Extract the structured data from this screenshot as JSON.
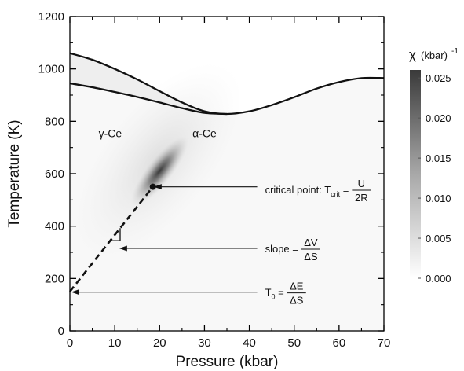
{
  "chart_data": {
    "type": "heatmap",
    "title": "",
    "xlabel": "Pressure (kbar)",
    "ylabel": "Temperature (K)",
    "xlim": [
      0,
      70
    ],
    "ylim": [
      0,
      1200
    ],
    "x_ticks": [
      0,
      10,
      20,
      30,
      40,
      50,
      60,
      70
    ],
    "y_ticks": [
      0,
      200,
      400,
      600,
      800,
      1000,
      1200
    ],
    "x_tick_labels": [
      "0",
      "10",
      "20",
      "30",
      "40",
      "50",
      "60",
      "70"
    ],
    "y_tick_labels": [
      "0",
      "200",
      "400",
      "600",
      "800",
      "1000",
      "1200"
    ],
    "grid": false,
    "colorbar": {
      "title": "χ",
      "unit": "(kbar)",
      "unit_exponent": "-1",
      "range": [
        0,
        0.026
      ],
      "ticks": [
        0.0,
        0.005,
        0.01,
        0.015,
        0.02,
        0.025
      ],
      "tick_labels": [
        "0.000",
        "0.005",
        "0.010",
        "0.015",
        "0.020",
        "0.025"
      ],
      "low_color": "#ffffff",
      "high_color": "#3a3a3a"
    },
    "regions": [
      {
        "label": "γ-Ce",
        "x": 9,
        "y": 740
      },
      {
        "label": "α-Ce",
        "x": 30,
        "y": 740
      }
    ],
    "boundary_upper": {
      "x": [
        0,
        5,
        10,
        15,
        20,
        25,
        30,
        35,
        40,
        45,
        50,
        55,
        60,
        65,
        70
      ],
      "y": [
        1060,
        1035,
        1000,
        960,
        915,
        872,
        838,
        828,
        838,
        862,
        892,
        925,
        950,
        965,
        965
      ]
    },
    "boundary_lower": {
      "x": [
        0,
        5,
        10,
        15,
        20,
        25,
        30,
        35
      ],
      "y": [
        945,
        930,
        912,
        893,
        872,
        850,
        832,
        828
      ]
    },
    "first_order_line": {
      "style": "dashed",
      "x": [
        0,
        18.5
      ],
      "y": [
        150,
        550
      ]
    },
    "critical_point": {
      "x": 18.5,
      "y": 550
    },
    "annotations": [
      {
        "id": "crit",
        "lead": "critical point:  T",
        "sub": "crit",
        "eq": " = ",
        "num": "U",
        "den": "2R",
        "arrow_to": {
          "x": 18.7,
          "y": 550
        },
        "text_at": {
          "x": 43.5,
          "y": 540
        }
      },
      {
        "id": "slope",
        "lead": "slope = ",
        "num": "ΔV",
        "den": "ΔS",
        "arrow_to": {
          "x": 11,
          "y": 315
        },
        "text_at": {
          "x": 43.5,
          "y": 315
        }
      },
      {
        "id": "t0",
        "lead": "T",
        "sub": "0",
        "eq": " = ",
        "num": "ΔE",
        "den": "ΔS",
        "arrow_to": {
          "x": 0.3,
          "y": 148
        },
        "text_at": {
          "x": 43.5,
          "y": 148
        }
      }
    ],
    "intensity_peak": {
      "center": {
        "x": 20,
        "y": 610
      },
      "value": 0.026
    }
  }
}
